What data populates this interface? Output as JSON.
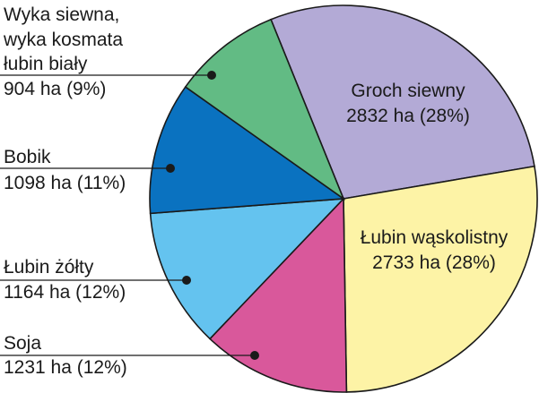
{
  "chart_data": {
    "type": "pie",
    "title": "",
    "unit": "ha",
    "slices": [
      {
        "label": "Groch siewny",
        "value": 2832,
        "percent": 28,
        "value_text": "2832 ha (28%)",
        "color": "#b3aad6",
        "label_inside": true
      },
      {
        "label": "Łubin wąskolistny",
        "value": 2733,
        "percent": 28,
        "value_text": "2733 ha (28%)",
        "color": "#fdf3a6",
        "label_inside": true
      },
      {
        "label": "Soja",
        "value": 1231,
        "percent": 12,
        "value_text": "1231 ha (12%)",
        "color": "#d9589b",
        "label_inside": false
      },
      {
        "label": "Łubin żółty",
        "value": 1164,
        "percent": 12,
        "value_text": "1164 ha (12%)",
        "color": "#64c3ef",
        "label_inside": false
      },
      {
        "label": "Bobik",
        "value": 1098,
        "percent": 11,
        "value_text": "1098 ha (11%)",
        "color": "#0a72c0",
        "label_inside": false
      },
      {
        "label": "Wyka siewna,\nwyka kosmata\nłubin biały",
        "value": 904,
        "percent": 9,
        "value_text": "904 ha (9%)",
        "color": "#62bb84",
        "label_inside": false
      }
    ]
  }
}
